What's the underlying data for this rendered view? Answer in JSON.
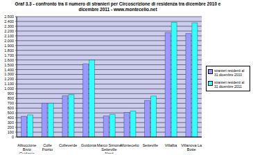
{
  "chart_data": {
    "type": "bar",
    "title": "Graf 3.3 - confronto tra il numero di stranieri per Circoscrizione di residenza tra dicembre 2010 e dicembre 2011 - www.montecelio.net",
    "categories": [
      "Albuccione Bivio Guidonia",
      "Colle Fiorito",
      "Colleverde",
      "Guidonia",
      "Marco Simone Setteville Nord",
      "Montecelio",
      "Setteville",
      "Villalba",
      "Villanova La Botte"
    ],
    "series": [
      {
        "name": "stranieri residenti al 31 dicembre 2010",
        "color": "#9999ff",
        "values": [
          430,
          700,
          860,
          1520,
          440,
          510,
          760,
          2170,
          2150
        ]
      },
      {
        "name": "stranieri residenti al 31 dicembre 2011",
        "color": "#33ffff",
        "values": [
          460,
          700,
          880,
          1600,
          470,
          540,
          850,
          2380,
          2370
        ]
      }
    ],
    "ylim": [
      0,
      2500
    ],
    "yticks": [
      0,
      100,
      200,
      300,
      400,
      500,
      600,
      700,
      800,
      900,
      {
        "value": 1000,
        "label": "1.000"
      },
      {
        "value": 1100,
        "label": "1.100"
      },
      {
        "value": 1200,
        "label": "1.200"
      },
      {
        "value": 1300,
        "label": "1.300"
      },
      {
        "value": 1400,
        "label": "1.400"
      },
      {
        "value": 1500,
        "label": "1.500"
      },
      {
        "value": 1600,
        "label": "1.600"
      },
      {
        "value": 1700,
        "label": "1.700"
      },
      {
        "value": 1800,
        "label": "1.800"
      },
      {
        "value": 1900,
        "label": "1.900"
      },
      {
        "value": 2000,
        "label": "2.000"
      },
      {
        "value": 2100,
        "label": "2.100"
      },
      {
        "value": 2200,
        "label": "2.200"
      },
      {
        "value": 2300,
        "label": "2.300"
      },
      {
        "value": 2400,
        "label": "2.400"
      },
      {
        "value": 2500,
        "label": "2.500"
      }
    ],
    "grid": true,
    "legend": "right"
  }
}
